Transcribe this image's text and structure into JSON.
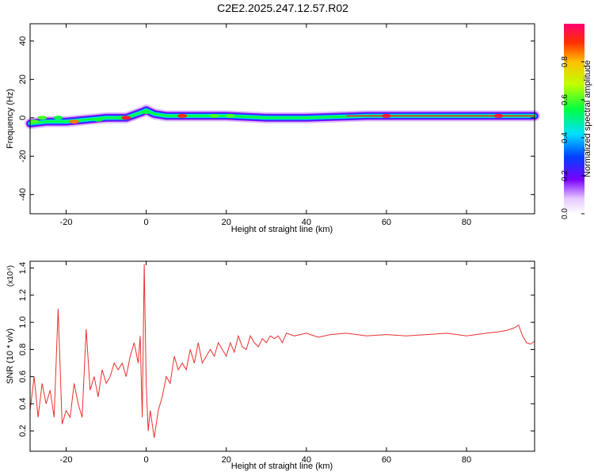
{
  "title": "C2E2.2025.247.12.57.R02",
  "colors": {
    "snr_line": "#e8302e",
    "background": "#ffffff",
    "axis": "#000000"
  },
  "chart_data": [
    {
      "type": "heatmap",
      "xlabel": "Height of straight line (km)",
      "ylabel": "Frequency (Hz)",
      "xlim": [
        -29,
        97
      ],
      "ylim": [
        -50,
        49
      ],
      "xticks": [
        -20,
        0,
        20,
        40,
        60,
        80
      ],
      "yticks": [
        -40,
        -20,
        0,
        20,
        40
      ],
      "colorbar": {
        "label": "Normalized spectral amplitude",
        "range": [
          0,
          1
        ],
        "ticks": [
          0.0,
          0.2,
          0.4,
          0.6,
          0.8
        ],
        "colormap": "rainbow"
      },
      "ridge": [
        {
          "x": -29,
          "y": -3
        },
        {
          "x": -25,
          "y": -2
        },
        {
          "x": -20,
          "y": -2
        },
        {
          "x": -15,
          "y": -1
        },
        {
          "x": -10,
          "y": 0
        },
        {
          "x": -5,
          "y": 0
        },
        {
          "x": -1,
          "y": 3
        },
        {
          "x": 0,
          "y": 4
        },
        {
          "x": 2,
          "y": 2
        },
        {
          "x": 5,
          "y": 1
        },
        {
          "x": 10,
          "y": 1
        },
        {
          "x": 20,
          "y": 1
        },
        {
          "x": 30,
          "y": 0
        },
        {
          "x": 40,
          "y": 0
        },
        {
          "x": 55,
          "y": 1
        },
        {
          "x": 70,
          "y": 1
        },
        {
          "x": 85,
          "y": 1
        },
        {
          "x": 92,
          "y": 1
        },
        {
          "x": 97,
          "y": 1
        }
      ],
      "hotspots": [
        {
          "x": -28,
          "y": -2,
          "amp": 0.6
        },
        {
          "x": -26,
          "y": 0,
          "amp": 0.6
        },
        {
          "x": -22,
          "y": 0,
          "amp": 0.55
        },
        {
          "x": -18,
          "y": -2,
          "amp": 0.85
        },
        {
          "x": -12,
          "y": -1,
          "amp": 0.55
        },
        {
          "x": -6,
          "y": 0,
          "amp": 0.55
        },
        {
          "x": -5,
          "y": 0,
          "amp": 0.95
        },
        {
          "x": 0,
          "y": 3,
          "amp": 0.55
        },
        {
          "x": 9,
          "y": 1,
          "amp": 0.9
        },
        {
          "x": 17,
          "y": 1,
          "amp": 0.6
        },
        {
          "x": 21,
          "y": 1,
          "amp": 0.6
        },
        {
          "x": 60,
          "y": 1,
          "amp": 0.95
        },
        {
          "x": 88,
          "y": 1,
          "amp": 0.95
        }
      ]
    },
    {
      "type": "line",
      "xlabel": "Height of straight line (km)",
      "ylabel": "SNR (10 * v/v)",
      "y_multiplier": "(x10⁴)",
      "xlim": [
        -29,
        97
      ],
      "ylim": [
        0.05,
        1.45
      ],
      "xticks": [
        -20,
        0,
        20,
        40,
        60,
        80
      ],
      "yticks": [
        0.2,
        0.4,
        0.6,
        0.8,
        1.0,
        1.2,
        1.4
      ],
      "series": [
        {
          "x": [
            -29,
            -28,
            -27,
            -26,
            -25,
            -24,
            -23,
            -22,
            -21,
            -20,
            -19,
            -18,
            -17,
            -16,
            -15,
            -14,
            -13,
            -12,
            -11,
            -10,
            -9,
            -8,
            -7,
            -6,
            -5,
            -4,
            -3,
            -2,
            -1.5,
            -1,
            -0.5,
            0,
            0.5,
            1,
            2,
            3,
            4,
            5,
            6,
            7,
            8,
            9,
            10,
            11,
            12,
            13,
            14,
            15,
            16,
            17,
            18,
            19,
            20,
            21,
            22,
            23,
            24,
            25,
            26,
            27,
            28,
            29,
            30,
            31,
            32,
            33,
            34,
            35,
            37,
            40,
            43,
            46,
            50,
            55,
            60,
            65,
            70,
            75,
            80,
            85,
            88,
            90,
            92,
            93,
            94,
            95,
            96,
            97
          ],
          "y": [
            0.35,
            0.6,
            0.3,
            0.55,
            0.4,
            0.5,
            0.3,
            1.1,
            0.25,
            0.35,
            0.3,
            0.55,
            0.4,
            0.3,
            0.95,
            0.5,
            0.6,
            0.45,
            0.65,
            0.55,
            0.6,
            0.7,
            0.65,
            0.7,
            0.6,
            0.75,
            0.85,
            0.7,
            0.9,
            0.3,
            1.43,
            0.55,
            0.2,
            0.35,
            0.15,
            0.35,
            0.45,
            0.6,
            0.55,
            0.75,
            0.65,
            0.7,
            0.65,
            0.8,
            0.7,
            0.85,
            0.7,
            0.75,
            0.8,
            0.75,
            0.85,
            0.8,
            0.75,
            0.85,
            0.78,
            0.9,
            0.82,
            0.8,
            0.9,
            0.85,
            0.82,
            0.88,
            0.85,
            0.9,
            0.88,
            0.9,
            0.85,
            0.92,
            0.9,
            0.92,
            0.89,
            0.91,
            0.92,
            0.9,
            0.91,
            0.9,
            0.91,
            0.92,
            0.9,
            0.92,
            0.93,
            0.94,
            0.96,
            0.98,
            0.9,
            0.85,
            0.84,
            0.86
          ]
        }
      ]
    }
  ]
}
